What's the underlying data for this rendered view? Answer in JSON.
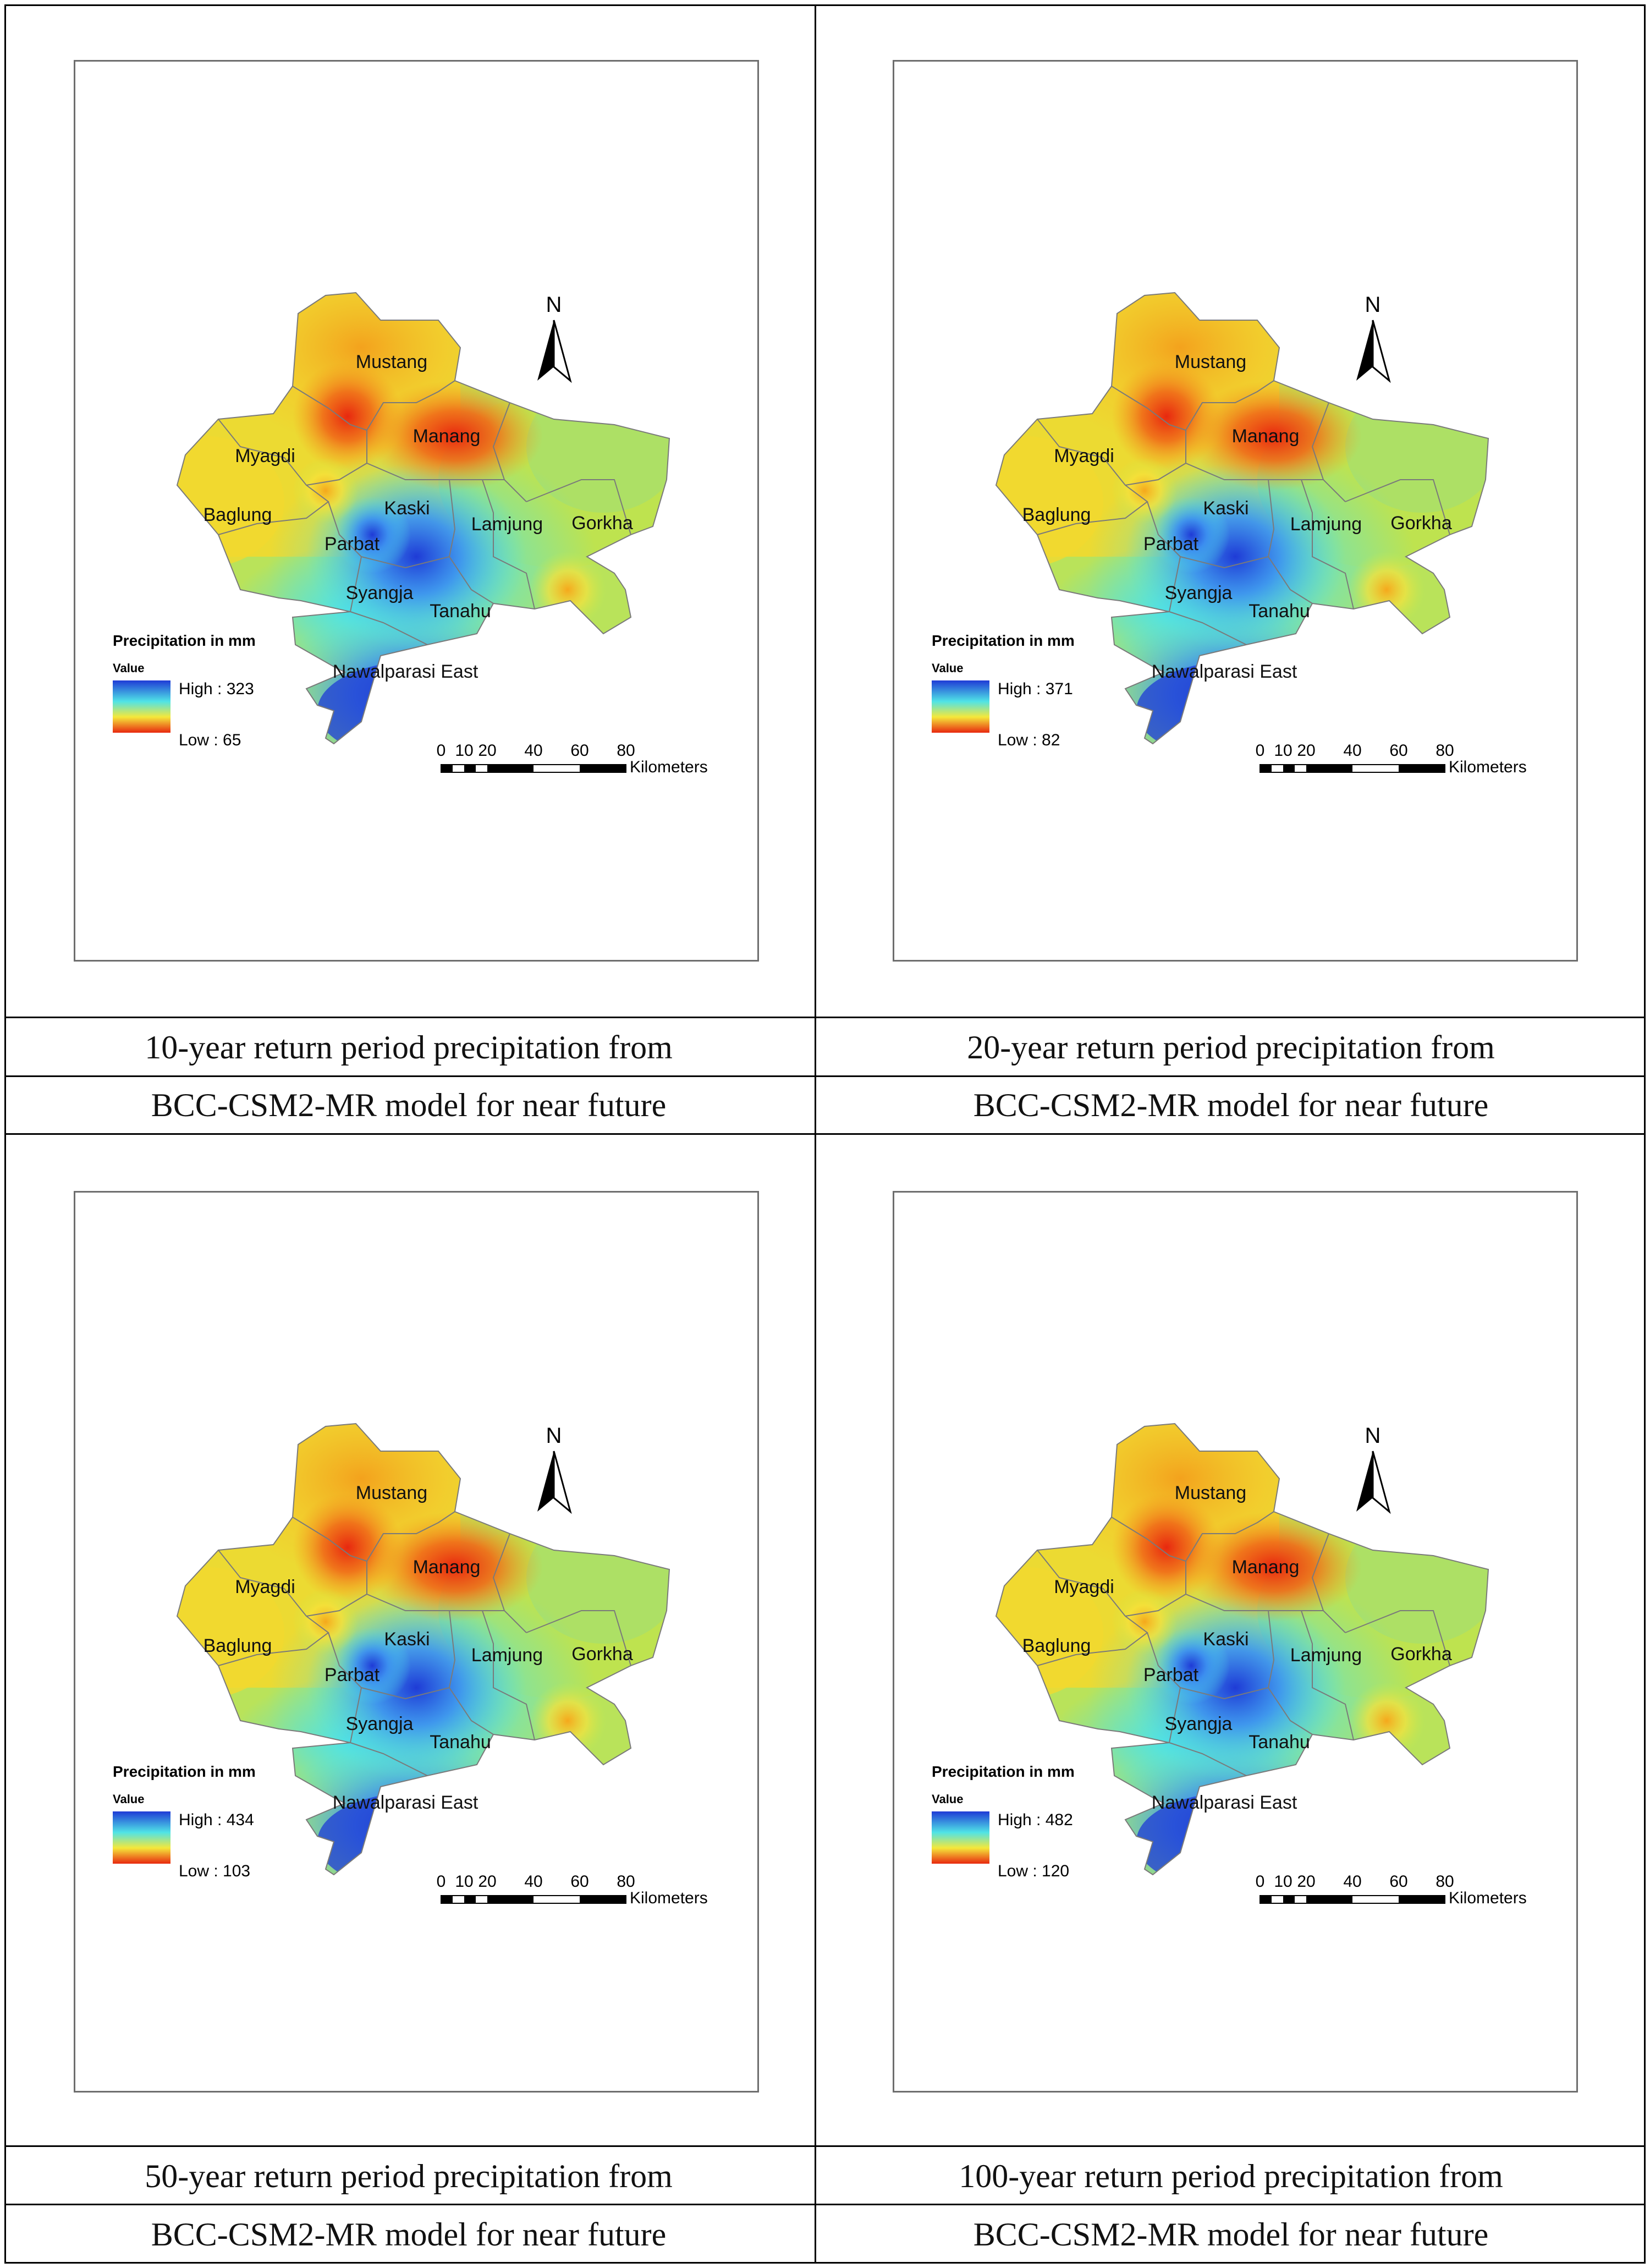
{
  "panels": [
    {
      "caption_line1": "10-year return period precipitation from",
      "caption_line2": "BCC-CSM2-MR model for near future",
      "legend_title": "Precipitation in mm",
      "legend_value_label": "Value",
      "high_label": "High : 323",
      "low_label": "Low : 65"
    },
    {
      "caption_line1": "20-year return period precipitation from",
      "caption_line2": "BCC-CSM2-MR model for near future",
      "legend_title": "Precipitation in mm",
      "legend_value_label": "Value",
      "high_label": "High : 371",
      "low_label": "Low : 82"
    },
    {
      "caption_line1": "50-year return period precipitation from",
      "caption_line2": "BCC-CSM2-MR model for near future",
      "legend_title": "Precipitation in mm",
      "legend_value_label": "Value",
      "high_label": "High : 434",
      "low_label": "Low : 103"
    },
    {
      "caption_line1": "100-year return period precipitation from",
      "caption_line2": "BCC-CSM2-MR model for near future",
      "legend_title": "Precipitation in mm",
      "legend_value_label": "Value",
      "high_label": "High : 482",
      "low_label": "Low : 120"
    }
  ],
  "districts": {
    "mustang": "Mustang",
    "manang": "Manang",
    "myagdi": "Myagdi",
    "baglung": "Baglung",
    "kaski": "Kaski",
    "lamjung": "Lamjung",
    "gorkha": "Gorkha",
    "parbat": "Parbat",
    "syangja": "Syangja",
    "tanahu": "Tanahu",
    "nawalparasi": "Nawalparasi East"
  },
  "north_label": "N",
  "scale": {
    "ticks": [
      "0",
      "10",
      "20",
      "40",
      "60",
      "80"
    ],
    "unit": "Kilometers"
  },
  "colors": {
    "high": "#1f3bd6",
    "mid": "#4fe3e6",
    "midlow": "#f5e83a",
    "low": "#e8280f",
    "border": "#7a7a7a"
  }
}
